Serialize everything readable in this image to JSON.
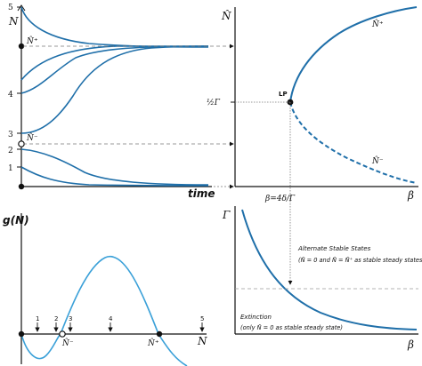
{
  "colors": {
    "curve_dark": "#1f6fa9",
    "curve_light": "#3aa0d8",
    "axis": "#111111",
    "guide": "#7a7a7a"
  },
  "panel_a": {
    "y_label": "N",
    "x_label": "time",
    "ticks": [
      "5",
      "4",
      "3",
      "2",
      "1"
    ],
    "n_plus_label": "N̂⁺",
    "n_minus_label": "N̂⁻"
  },
  "panel_b": {
    "y_label": "N̂",
    "x_label": "β",
    "lp_label": "LP",
    "half_gamma_label": "½Γ",
    "beta_label": "β=4δ/Γ",
    "upper_branch_label": "N̂⁺",
    "lower_branch_label": "N̂⁻"
  },
  "panel_c": {
    "y_label": "g(N)",
    "x_label": "N",
    "arrow_labels": [
      "1",
      "2",
      "3",
      "4",
      "5"
    ],
    "n_minus_label": "N̂⁻",
    "n_plus_label": "N̂⁺"
  },
  "panel_d": {
    "y_label": "Γ",
    "x_label": "β",
    "alt_title": "Alternate Stable States",
    "alt_detail": "(N̂ = 0 and N̂ = N̂⁺ as stable steady states)",
    "ext_title": "Extinction",
    "ext_detail": "(only N̂ = 0 as stable steady state)"
  }
}
